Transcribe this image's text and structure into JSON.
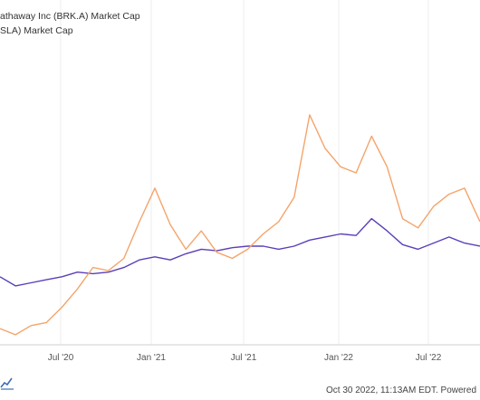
{
  "legend": [
    {
      "label": "athaway Inc (BRK.A) Market Cap",
      "color": "#5b3fb8"
    },
    {
      "label": "SLA) Market Cap",
      "color": "#f4a46b"
    }
  ],
  "footer": {
    "text": "Oct 30 2022, 11:13AM EDT. Powered"
  },
  "logo": {
    "icon": "ycharts-logo-icon"
  },
  "chart_data": {
    "type": "line",
    "x_ticks": [
      "Jul '20",
      "Jan '21",
      "Jul '21",
      "Jan '22",
      "Jul '22"
    ],
    "x": [
      "2020-03",
      "2020-04",
      "2020-05",
      "2020-06",
      "2020-07",
      "2020-08",
      "2020-09",
      "2020-10",
      "2020-11",
      "2020-12",
      "2021-01",
      "2021-02",
      "2021-03",
      "2021-04",
      "2021-05",
      "2021-06",
      "2021-07",
      "2021-08",
      "2021-09",
      "2021-10",
      "2021-11",
      "2021-12",
      "2022-01",
      "2022-02",
      "2022-03",
      "2022-04",
      "2022-05",
      "2022-06",
      "2022-07",
      "2022-08",
      "2022-09",
      "2022-10"
    ],
    "series": [
      {
        "values": [
          0.44,
          0.38,
          0.4,
          0.42,
          0.44,
          0.47,
          0.46,
          0.47,
          0.5,
          0.55,
          0.57,
          0.55,
          0.59,
          0.62,
          0.61,
          0.63,
          0.64,
          0.64,
          0.62,
          0.64,
          0.68,
          0.7,
          0.72,
          0.71,
          0.82,
          0.74,
          0.65,
          0.62,
          0.66,
          0.7,
          0.66,
          0.64
        ],
        "color": "#5b3fb8"
      },
      {
        "values": [
          0.1,
          0.06,
          0.12,
          0.14,
          0.24,
          0.36,
          0.5,
          0.48,
          0.56,
          0.8,
          1.02,
          0.78,
          0.62,
          0.74,
          0.6,
          0.56,
          0.62,
          0.72,
          0.8,
          0.96,
          1.5,
          1.28,
          1.16,
          1.12,
          1.36,
          1.16,
          0.82,
          0.76,
          0.9,
          0.98,
          1.02,
          0.8
        ],
        "color": "#f4a46b"
      }
    ]
  }
}
